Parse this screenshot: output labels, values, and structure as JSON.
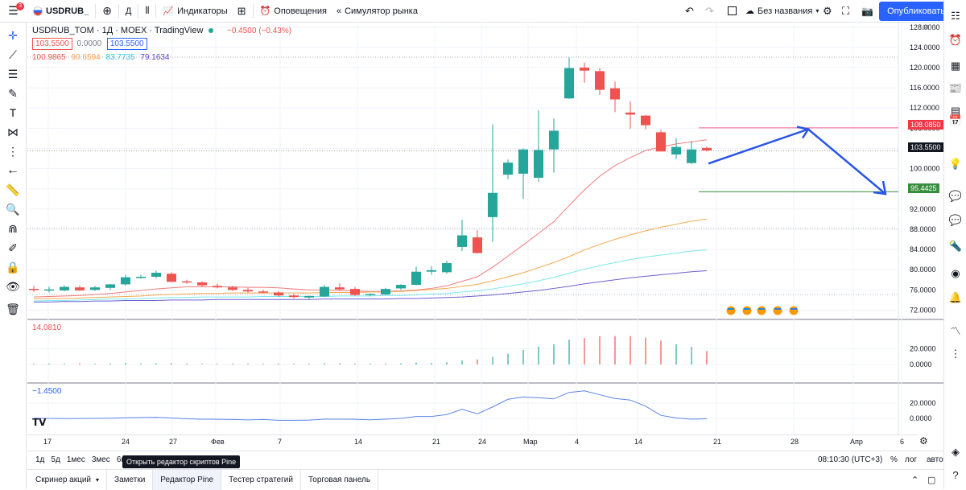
{
  "topbar": {
    "symbol": "USDRUB_",
    "interval": "Д",
    "indicators": "Индикаторы",
    "alerts": "Оповещения",
    "replay": "Симулятор рынка",
    "layout_name": "Без названия",
    "publish": "Опубликовать",
    "menu_badge": "3"
  },
  "legend": {
    "title": "USDRUB_TOM · 1Д · MOEX · TradingView",
    "change": "−0.4500 (−0.43%)",
    "bid": "103.5500",
    "spread": "0.0000",
    "ask": "103.5500",
    "ma1": "100.9865",
    "ma2": "90.6594",
    "ma3": "83.7735",
    "ma4": "79.1634",
    "volume": "14.0810",
    "osc": "−1.4500"
  },
  "colors": {
    "up": "#26a69a",
    "down": "#ef5350",
    "ma1": "#f07c7c",
    "ma2": "#f5a94f",
    "ma3": "#79e8f0",
    "ma4": "#6d5fd0",
    "accent": "#2962ff",
    "arrow": "#2955e8"
  },
  "yaxis": {
    "currency": "RUB",
    "main_ticks": [
      "128.0000",
      "124.0000",
      "120.0000",
      "116.0000",
      "112.0000",
      "108.0000",
      "104.0000",
      "100.0000",
      "96.0000",
      "92.0000",
      "88.0000",
      "84.0000",
      "80.0000",
      "76.0000",
      "72.0000"
    ],
    "vol_ticks": [
      "20.0000",
      "0.0000"
    ],
    "osc_ticks": [
      "20.0000",
      "0.0000"
    ],
    "tag_upper": "108.0850",
    "tag_last": "103.5500",
    "tag_lower": "95.4425"
  },
  "xaxis": {
    "labels": [
      "17",
      "24",
      "27",
      "Фев",
      "7",
      "14",
      "21",
      "24",
      "Мар",
      "4",
      "14",
      "21",
      "28",
      "Апр",
      "6"
    ]
  },
  "bottombar": {
    "ranges": [
      "1д",
      "5д",
      "1мес",
      "3мес",
      "6м"
    ],
    "time": "08:10:30 (UTC+3)",
    "percent": "%",
    "log": "лог",
    "auto": "авто"
  },
  "tooltip": "Открыть редактор скриптов Pine",
  "tabs": [
    "Скринер акций",
    "Заметки",
    "Редактор Pine",
    "Тестер стратегий",
    "Торговая панель"
  ],
  "chart_data": {
    "type": "candlestick",
    "candles": [
      {
        "o": 76.2,
        "h": 76.8,
        "l": 75.6,
        "c": 76.0
      },
      {
        "o": 76.0,
        "h": 76.6,
        "l": 75.5,
        "c": 76.1
      },
      {
        "o": 75.9,
        "h": 76.9,
        "l": 75.7,
        "c": 76.6
      },
      {
        "o": 76.5,
        "h": 76.9,
        "l": 75.8,
        "c": 75.9
      },
      {
        "o": 76.0,
        "h": 76.8,
        "l": 75.8,
        "c": 76.5
      },
      {
        "o": 76.4,
        "h": 77.2,
        "l": 76.0,
        "c": 77.1
      },
      {
        "o": 77.1,
        "h": 79.0,
        "l": 76.8,
        "c": 78.5
      },
      {
        "o": 78.5,
        "h": 79.0,
        "l": 78.2,
        "c": 78.6
      },
      {
        "o": 78.6,
        "h": 79.8,
        "l": 78.3,
        "c": 79.4
      },
      {
        "o": 79.2,
        "h": 79.5,
        "l": 77.6,
        "c": 77.6
      },
      {
        "o": 77.7,
        "h": 78.0,
        "l": 77.2,
        "c": 77.5
      },
      {
        "o": 77.5,
        "h": 77.7,
        "l": 76.7,
        "c": 76.9
      },
      {
        "o": 76.8,
        "h": 77.2,
        "l": 76.3,
        "c": 76.5
      },
      {
        "o": 76.5,
        "h": 76.8,
        "l": 75.8,
        "c": 76.0
      },
      {
        "o": 76.0,
        "h": 76.4,
        "l": 75.5,
        "c": 75.7
      },
      {
        "o": 75.7,
        "h": 76.0,
        "l": 75.3,
        "c": 75.5
      },
      {
        "o": 75.5,
        "h": 75.8,
        "l": 74.6,
        "c": 74.9
      },
      {
        "o": 74.9,
        "h": 75.2,
        "l": 74.3,
        "c": 74.6
      },
      {
        "o": 74.5,
        "h": 74.9,
        "l": 74.2,
        "c": 74.8
      },
      {
        "o": 74.7,
        "h": 77.0,
        "l": 74.6,
        "c": 76.6
      },
      {
        "o": 76.5,
        "h": 77.3,
        "l": 75.8,
        "c": 76.1
      },
      {
        "o": 76.2,
        "h": 76.6,
        "l": 74.8,
        "c": 75.0
      },
      {
        "o": 75.0,
        "h": 75.3,
        "l": 74.8,
        "c": 75.2
      },
      {
        "o": 75.1,
        "h": 76.4,
        "l": 75.0,
        "c": 76.2
      },
      {
        "o": 76.3,
        "h": 77.1,
        "l": 76.0,
        "c": 77.0
      },
      {
        "o": 77.0,
        "h": 80.6,
        "l": 76.9,
        "c": 79.6
      },
      {
        "o": 79.6,
        "h": 80.7,
        "l": 79.0,
        "c": 79.9
      },
      {
        "o": 79.5,
        "h": 81.8,
        "l": 79.2,
        "c": 81.3
      },
      {
        "o": 84.5,
        "h": 89.9,
        "l": 83.7,
        "c": 86.8
      },
      {
        "o": 86.4,
        "h": 87.8,
        "l": 83.2,
        "c": 83.3
      },
      {
        "o": 90.4,
        "h": 108.8,
        "l": 85.5,
        "c": 95.2
      },
      {
        "o": 98.8,
        "h": 101.8,
        "l": 97.9,
        "c": 101.2
      },
      {
        "o": 99.0,
        "h": 104.0,
        "l": 94.0,
        "c": 103.8
      },
      {
        "o": 98.2,
        "h": 111.5,
        "l": 97.4,
        "c": 103.7
      },
      {
        "o": 103.8,
        "h": 109.9,
        "l": 99.2,
        "c": 107.5
      },
      {
        "o": 113.9,
        "h": 122.0,
        "l": 113.8,
        "c": 119.9
      },
      {
        "o": 120.0,
        "h": 121.0,
        "l": 117.0,
        "c": 119.4
      },
      {
        "o": 119.3,
        "h": 119.9,
        "l": 114.6,
        "c": 115.6
      },
      {
        "o": 115.9,
        "h": 117.2,
        "l": 111.2,
        "c": 113.7
      },
      {
        "o": 111.1,
        "h": 113.3,
        "l": 107.9,
        "c": 110.7
      },
      {
        "o": 110.5,
        "h": 110.6,
        "l": 107.8,
        "c": 108.6
      },
      {
        "o": 107.2,
        "h": 107.7,
        "l": 103.4,
        "c": 103.4
      },
      {
        "o": 102.8,
        "h": 106.0,
        "l": 101.9,
        "c": 104.3
      },
      {
        "o": 101.1,
        "h": 105.5,
        "l": 100.9,
        "c": 103.8
      },
      {
        "o": 104.1,
        "h": 104.4,
        "l": 103.4,
        "c": 103.6
      }
    ],
    "ma": [
      {
        "name": "ma1",
        "values": [
          74.6,
          74.7,
          74.8,
          74.9,
          75.1,
          75.3,
          75.6,
          75.9,
          76.2,
          76.4,
          76.6,
          76.6,
          76.6,
          76.6,
          76.5,
          76.5,
          76.4,
          76.2,
          76.0,
          76.0,
          75.9,
          75.8,
          75.7,
          75.7,
          75.8,
          76.0,
          76.3,
          76.8,
          77.7,
          78.6,
          80.5,
          82.7,
          84.9,
          87.2,
          89.5,
          92.7,
          95.8,
          98.5,
          100.6,
          102.2,
          103.6,
          104.3,
          104.9,
          105.3,
          105.7
        ]
      },
      {
        "name": "ma2",
        "values": [
          74.2,
          74.3,
          74.3,
          74.4,
          74.5,
          74.6,
          74.7,
          74.8,
          75.0,
          75.1,
          75.2,
          75.3,
          75.3,
          75.4,
          75.4,
          75.4,
          75.4,
          75.4,
          75.4,
          75.5,
          75.5,
          75.5,
          75.6,
          75.6,
          75.7,
          75.9,
          76.1,
          76.3,
          76.7,
          77.1,
          77.8,
          78.6,
          79.4,
          80.4,
          81.4,
          82.6,
          83.9,
          85.0,
          86.0,
          86.9,
          87.7,
          88.4,
          89.0,
          89.6,
          90.0
        ]
      },
      {
        "name": "ma3",
        "values": [
          73.8,
          73.9,
          73.9,
          74.0,
          74.1,
          74.2,
          74.2,
          74.3,
          74.4,
          74.5,
          74.5,
          74.6,
          74.6,
          74.6,
          74.6,
          74.7,
          74.7,
          74.7,
          74.7,
          74.7,
          74.8,
          74.8,
          74.8,
          74.9,
          74.9,
          75.0,
          75.2,
          75.3,
          75.6,
          75.8,
          76.2,
          76.7,
          77.2,
          77.8,
          78.5,
          79.3,
          80.1,
          80.8,
          81.4,
          82.0,
          82.5,
          82.9,
          83.3,
          83.7,
          83.9
        ]
      },
      {
        "name": "ma4",
        "values": [
          73.6,
          73.6,
          73.7,
          73.7,
          73.8,
          73.8,
          73.9,
          73.9,
          73.9,
          74.0,
          74.0,
          74.0,
          74.1,
          74.1,
          74.1,
          74.1,
          74.1,
          74.1,
          74.1,
          74.2,
          74.2,
          74.2,
          74.2,
          74.2,
          74.3,
          74.3,
          74.4,
          74.5,
          74.6,
          74.8,
          75.0,
          75.3,
          75.6,
          75.9,
          76.3,
          76.7,
          77.2,
          77.6,
          78.0,
          78.4,
          78.7,
          79.0,
          79.3,
          79.6,
          79.8
        ]
      }
    ],
    "volume": [
      1.0,
      1.2,
      1.0,
      1.5,
      1.0,
      1.3,
      2.0,
      1.2,
      1.6,
      1.5,
      1.2,
      1.0,
      1.1,
      1.0,
      1.2,
      1.0,
      1.3,
      1.1,
      1.0,
      1.4,
      1.6,
      1.2,
      1.0,
      1.1,
      1.5,
      2.5,
      1.8,
      2.8,
      5.0,
      6.5,
      9.5,
      13.5,
      18.5,
      22.5,
      25.5,
      31.5,
      33.5,
      36.0,
      36.0,
      36.0,
      34.0,
      30.5,
      25.5,
      22.5,
      17.0
    ],
    "osc": [
      0.2,
      0.0,
      -0.2,
      -0.1,
      0.0,
      0.2,
      0.8,
      1.2,
      1.5,
      0.5,
      -0.5,
      -1.0,
      -1.2,
      -1.5,
      -2.0,
      -1.5,
      -2.5,
      -2.5,
      -2.3,
      -1.0,
      -1.0,
      -1.2,
      -1.8,
      -1.0,
      0.0,
      2.5,
      2.5,
      5.0,
      12.0,
      6.0,
      15.0,
      25.0,
      28.0,
      27.0,
      25.5,
      34.0,
      36.0,
      31.0,
      26.0,
      24.0,
      16.0,
      4.0,
      0.5,
      -1.0,
      -0.5
    ],
    "ylim": [
      70.0,
      130.0
    ],
    "levels": {
      "upper": 108.085,
      "last": 103.55,
      "lower": 95.4425
    },
    "forecast": [
      {
        "i": 44,
        "p": 101.0
      },
      {
        "i": 51,
        "p": 107.8
      },
      {
        "i": 55,
        "p": 95.0
      }
    ]
  }
}
